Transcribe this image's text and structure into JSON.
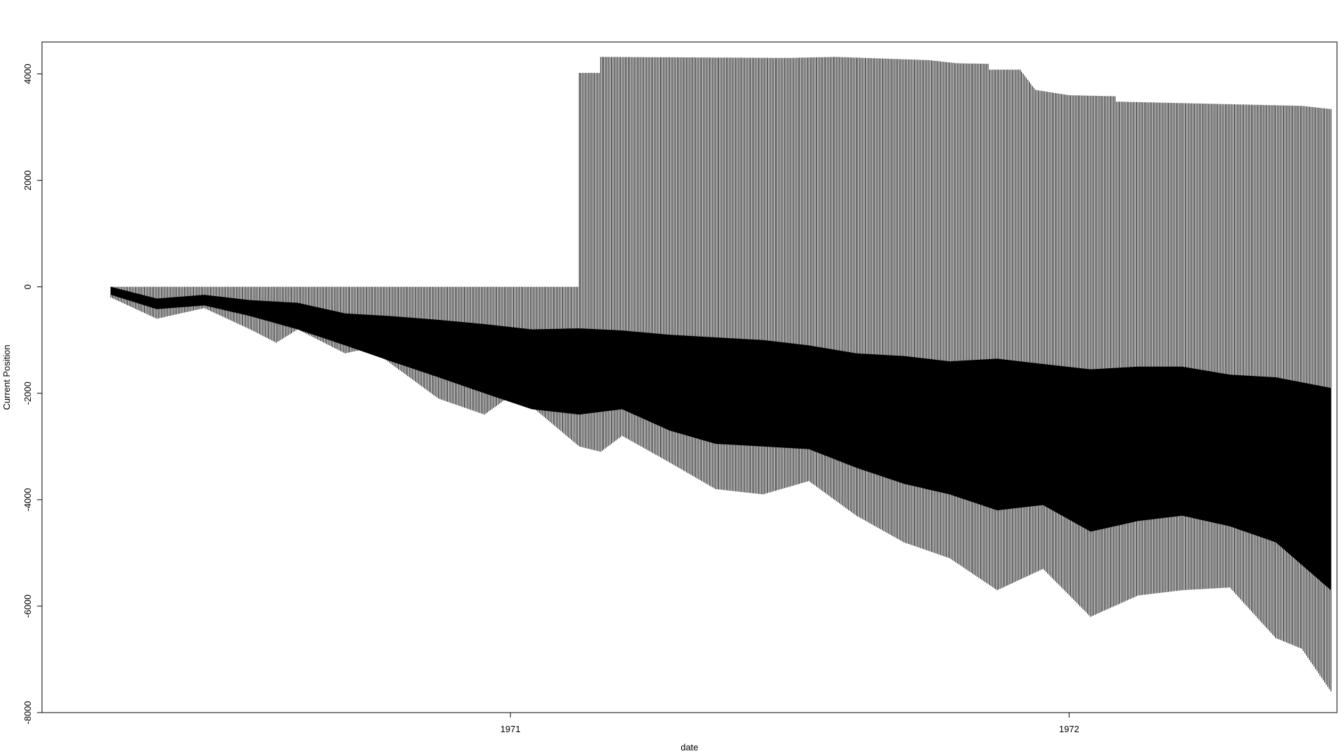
{
  "chart_data": {
    "type": "bar",
    "title": "",
    "xlabel": "date",
    "ylabel": "Current Position",
    "ylim": [
      -8000,
      4600
    ],
    "xlim": [
      "1970-03-01",
      "1972-06-24"
    ],
    "x_ticks": [
      {
        "label": "1971",
        "date": "1971-01-01"
      },
      {
        "label": "1972",
        "date": "1972-01-01"
      }
    ],
    "y_ticks": [
      -8000,
      -6000,
      -4000,
      -2000,
      0,
      2000,
      4000
    ],
    "bar_color": "#000000",
    "grid": false,
    "legend": "none",
    "series": [
      {
        "kind": "upper_envelope",
        "points": [
          [
            "1970-04-15",
            0
          ],
          [
            "1971-02-15",
            0
          ],
          [
            "1971-02-15",
            4020
          ],
          [
            "1971-03-01",
            4020
          ],
          [
            "1971-03-01",
            4320
          ],
          [
            "1971-07-01",
            4300
          ],
          [
            "1971-08-01",
            4320
          ],
          [
            "1971-10-01",
            4260
          ],
          [
            "1971-10-20",
            4200
          ],
          [
            "1971-11-10",
            4190
          ],
          [
            "1971-11-10",
            4080
          ],
          [
            "1971-11-30",
            4080
          ],
          [
            "1971-12-10",
            3700
          ],
          [
            "1972-01-01",
            3600
          ],
          [
            "1972-02-01",
            3580
          ],
          [
            "1972-02-01",
            3480
          ],
          [
            "1972-06-01",
            3400
          ],
          [
            "1972-06-20",
            3340
          ]
        ]
      },
      {
        "kind": "dense_band_top",
        "points": [
          [
            "1970-04-15",
            0
          ],
          [
            "1970-05-15",
            -220
          ],
          [
            "1970-06-15",
            -150
          ],
          [
            "1970-07-15",
            -250
          ],
          [
            "1970-08-15",
            -300
          ],
          [
            "1970-09-15",
            -500
          ],
          [
            "1970-10-15",
            -550
          ],
          [
            "1970-11-15",
            -620
          ],
          [
            "1970-12-15",
            -700
          ],
          [
            "1971-01-15",
            -800
          ],
          [
            "1971-02-15",
            -780
          ],
          [
            "1971-03-15",
            -820
          ],
          [
            "1971-04-15",
            -900
          ],
          [
            "1971-05-15",
            -950
          ],
          [
            "1971-06-15",
            -1000
          ],
          [
            "1971-07-15",
            -1100
          ],
          [
            "1971-08-15",
            -1250
          ],
          [
            "1971-09-15",
            -1300
          ],
          [
            "1971-10-15",
            -1400
          ],
          [
            "1971-11-15",
            -1350
          ],
          [
            "1971-12-15",
            -1450
          ],
          [
            "1972-01-15",
            -1550
          ],
          [
            "1972-02-15",
            -1500
          ],
          [
            "1972-03-15",
            -1500
          ],
          [
            "1972-04-15",
            -1650
          ],
          [
            "1972-05-15",
            -1700
          ],
          [
            "1972-06-20",
            -1900
          ]
        ]
      },
      {
        "kind": "dense_band_bottom",
        "points": [
          [
            "1970-04-15",
            -150
          ],
          [
            "1970-05-15",
            -420
          ],
          [
            "1970-06-15",
            -350
          ],
          [
            "1970-07-15",
            -550
          ],
          [
            "1970-08-15",
            -800
          ],
          [
            "1970-09-15",
            -1100
          ],
          [
            "1970-10-15",
            -1400
          ],
          [
            "1970-11-15",
            -1700
          ],
          [
            "1970-12-15",
            -2000
          ],
          [
            "1971-01-15",
            -2300
          ],
          [
            "1971-02-15",
            -2400
          ],
          [
            "1971-03-15",
            -2300
          ],
          [
            "1971-04-15",
            -2700
          ],
          [
            "1971-05-15",
            -2950
          ],
          [
            "1971-06-15",
            -3000
          ],
          [
            "1971-07-15",
            -3050
          ],
          [
            "1971-08-15",
            -3400
          ],
          [
            "1971-09-15",
            -3700
          ],
          [
            "1971-10-15",
            -3900
          ],
          [
            "1971-11-15",
            -4200
          ],
          [
            "1971-12-15",
            -4100
          ],
          [
            "1972-01-15",
            -4600
          ],
          [
            "1972-02-15",
            -4400
          ],
          [
            "1972-03-15",
            -4300
          ],
          [
            "1972-04-15",
            -4500
          ],
          [
            "1972-05-15",
            -4800
          ],
          [
            "1972-06-20",
            -5700
          ]
        ]
      },
      {
        "kind": "lower_envelope",
        "points": [
          [
            "1970-04-15",
            -200
          ],
          [
            "1970-05-15",
            -600
          ],
          [
            "1970-06-15",
            -400
          ],
          [
            "1970-07-15",
            -800
          ],
          [
            "1970-08-01",
            -1050
          ],
          [
            "1970-08-15",
            -800
          ],
          [
            "1970-09-15",
            -1250
          ],
          [
            "1970-10-01",
            -1150
          ],
          [
            "1970-11-15",
            -2100
          ],
          [
            "1970-12-15",
            -2400
          ],
          [
            "1971-01-01",
            -2050
          ],
          [
            "1971-01-15",
            -2250
          ],
          [
            "1971-02-15",
            -3000
          ],
          [
            "1971-03-01",
            -3100
          ],
          [
            "1971-03-15",
            -2800
          ],
          [
            "1971-04-15",
            -3300
          ],
          [
            "1971-05-15",
            -3800
          ],
          [
            "1971-06-15",
            -3900
          ],
          [
            "1971-07-15",
            -3650
          ],
          [
            "1971-08-15",
            -4300
          ],
          [
            "1971-09-15",
            -4800
          ],
          [
            "1971-10-15",
            -5100
          ],
          [
            "1971-11-15",
            -5700
          ],
          [
            "1971-12-15",
            -5300
          ],
          [
            "1972-01-15",
            -6200
          ],
          [
            "1972-02-15",
            -5800
          ],
          [
            "1972-03-15",
            -5700
          ],
          [
            "1972-04-15",
            -5650
          ],
          [
            "1972-05-15",
            -6600
          ],
          [
            "1972-06-01",
            -6800
          ],
          [
            "1972-06-20",
            -7600
          ]
        ]
      }
    ]
  }
}
